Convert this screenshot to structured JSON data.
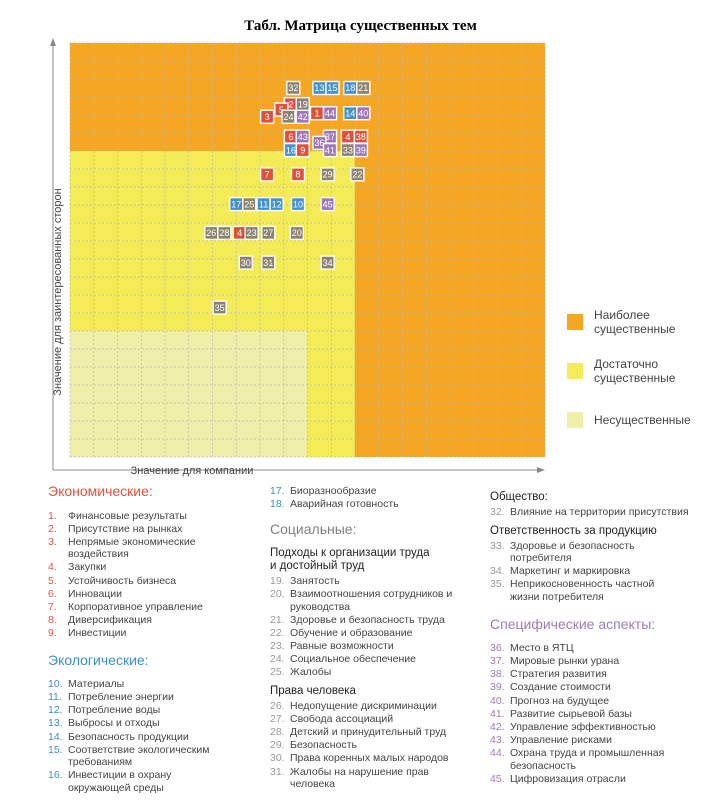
{
  "title": "Табл. Матрица существенных тем",
  "chart_data": {
    "type": "scatter",
    "title": "Табл. Матрица существенных тем",
    "xlabel": "Значение для компании",
    "ylabel": "Значение для заинтересованных сторон",
    "xlim": [
      0,
      20
    ],
    "ylim": [
      0,
      23
    ],
    "grid": true,
    "zones": [
      {
        "name": "Наиболее существенные",
        "color": "#f5a623"
      },
      {
        "name": "Достаточно существенные",
        "color": "#f3ec57"
      },
      {
        "name": "Несущественные",
        "color": "#f0efaa"
      }
    ],
    "category_colors": {
      "eco": "#d9533f",
      "env": "#4591cc",
      "soc": "#8c8273",
      "spec": "#9d77b5"
    },
    "points": [
      {
        "label": "32",
        "cat": "soc",
        "x": 9.4,
        "y": 20.5
      },
      {
        "label": "13",
        "cat": "env",
        "x": 10.5,
        "y": 20.5
      },
      {
        "label": "15",
        "cat": "env",
        "x": 11.05,
        "y": 20.5
      },
      {
        "label": "18",
        "cat": "env",
        "x": 11.8,
        "y": 20.5
      },
      {
        "label": "21",
        "cat": "soc",
        "x": 12.35,
        "y": 20.5
      },
      {
        "label": "2",
        "cat": "eco",
        "x": 9.3,
        "y": 19.6
      },
      {
        "label": "19",
        "cat": "soc",
        "x": 9.8,
        "y": 19.6
      },
      {
        "label": "5",
        "cat": "eco",
        "x": 8.9,
        "y": 19.3
      },
      {
        "label": "3",
        "cat": "eco",
        "x": 8.3,
        "y": 18.9
      },
      {
        "label": "24",
        "cat": "soc",
        "x": 9.2,
        "y": 18.9
      },
      {
        "label": "42",
        "cat": "spec",
        "x": 9.8,
        "y": 18.9
      },
      {
        "label": "1",
        "cat": "eco",
        "x": 10.4,
        "y": 19.1
      },
      {
        "label": "44",
        "cat": "spec",
        "x": 10.95,
        "y": 19.1
      },
      {
        "label": "14",
        "cat": "env",
        "x": 11.8,
        "y": 19.1
      },
      {
        "label": "40",
        "cat": "spec",
        "x": 12.35,
        "y": 19.1
      },
      {
        "label": "6",
        "cat": "eco",
        "x": 9.3,
        "y": 17.8
      },
      {
        "label": "43",
        "cat": "spec",
        "x": 9.8,
        "y": 17.8
      },
      {
        "label": "37",
        "cat": "spec",
        "x": 10.95,
        "y": 17.8
      },
      {
        "label": "4",
        "cat": "eco",
        "x": 11.7,
        "y": 17.8
      },
      {
        "label": "38",
        "cat": "eco",
        "x": 12.25,
        "y": 17.8
      },
      {
        "label": "36",
        "cat": "spec",
        "x": 10.5,
        "y": 17.45
      },
      {
        "label": "16",
        "cat": "env",
        "x": 9.3,
        "y": 17.05
      },
      {
        "label": "9",
        "cat": "eco",
        "x": 9.8,
        "y": 17.05
      },
      {
        "label": "41",
        "cat": "spec",
        "x": 10.95,
        "y": 17.05
      },
      {
        "label": "33",
        "cat": "soc",
        "x": 11.7,
        "y": 17.05
      },
      {
        "label": "39",
        "cat": "spec",
        "x": 12.25,
        "y": 17.05
      },
      {
        "label": "7",
        "cat": "eco",
        "x": 8.3,
        "y": 15.7
      },
      {
        "label": "8",
        "cat": "eco",
        "x": 9.6,
        "y": 15.7
      },
      {
        "label": "29",
        "cat": "soc",
        "x": 10.85,
        "y": 15.7
      },
      {
        "label": "22",
        "cat": "soc",
        "x": 12.1,
        "y": 15.7
      },
      {
        "label": "17",
        "cat": "env",
        "x": 7.0,
        "y": 14.05
      },
      {
        "label": "25",
        "cat": "soc",
        "x": 7.55,
        "y": 14.05
      },
      {
        "label": "11",
        "cat": "env",
        "x": 8.15,
        "y": 14.05
      },
      {
        "label": "12",
        "cat": "env",
        "x": 8.7,
        "y": 14.05
      },
      {
        "label": "10",
        "cat": "env",
        "x": 9.6,
        "y": 14.05
      },
      {
        "label": "45",
        "cat": "spec",
        "x": 10.85,
        "y": 14.05
      },
      {
        "label": "26",
        "cat": "soc",
        "x": 5.95,
        "y": 12.45
      },
      {
        "label": "28",
        "cat": "soc",
        "x": 6.5,
        "y": 12.45
      },
      {
        "label": "4",
        "cat": "eco",
        "x": 7.15,
        "y": 12.45
      },
      {
        "label": "23",
        "cat": "soc",
        "x": 7.65,
        "y": 12.45
      },
      {
        "label": "27",
        "cat": "soc",
        "x": 8.35,
        "y": 12.45
      },
      {
        "label": "20",
        "cat": "soc",
        "x": 9.55,
        "y": 12.45
      },
      {
        "label": "30",
        "cat": "soc",
        "x": 7.4,
        "y": 10.8
      },
      {
        "label": "31",
        "cat": "soc",
        "x": 8.35,
        "y": 10.8
      },
      {
        "label": "34",
        "cat": "soc",
        "x": 10.85,
        "y": 10.8
      },
      {
        "label": "35",
        "cat": "soc",
        "x": 6.3,
        "y": 8.3
      }
    ]
  },
  "legend": [
    {
      "label_lines": [
        "Наиболее",
        "существенные"
      ],
      "color": "#f5a623"
    },
    {
      "label_lines": [
        "Достаточно",
        "существенные"
      ],
      "color": "#f3ec57"
    },
    {
      "label_lines": [
        "Несущественные"
      ],
      "color": "#f0efaa"
    }
  ],
  "categories": {
    "economic": {
      "heading": "Экономические:",
      "items": [
        {
          "num": "1.",
          "lines": [
            "Финансовые результаты"
          ]
        },
        {
          "num": "2.",
          "lines": [
            "Присутствие на рынках"
          ]
        },
        {
          "num": "3.",
          "lines": [
            "Непрямые экономические",
            "воздействия"
          ]
        },
        {
          "num": "4.",
          "lines": [
            "Закупки"
          ]
        },
        {
          "num": "5.",
          "lines": [
            "Устойчивость бизнеса"
          ]
        },
        {
          "num": "6.",
          "lines": [
            "Инновации"
          ]
        },
        {
          "num": "7.",
          "lines": [
            "Корпоративное управление"
          ]
        },
        {
          "num": "8.",
          "lines": [
            "Диверсификация"
          ]
        },
        {
          "num": "9.",
          "lines": [
            "Инвестиции"
          ]
        }
      ]
    },
    "environmental": {
      "heading": "Экологические:",
      "items": [
        {
          "num": "10.",
          "lines": [
            "Материалы"
          ]
        },
        {
          "num": "11.",
          "lines": [
            "Потребление энергии"
          ]
        },
        {
          "num": "12.",
          "lines": [
            "Потребление воды"
          ]
        },
        {
          "num": "13.",
          "lines": [
            "Выбросы и отходы"
          ]
        },
        {
          "num": "14.",
          "lines": [
            "Безопасность продукции"
          ]
        },
        {
          "num": "15.",
          "lines": [
            "Соответствие экологическим",
            "требованиям"
          ]
        },
        {
          "num": "16.",
          "lines": [
            "Инвестиции в охрану",
            "окружающей среды"
          ]
        }
      ]
    },
    "environmental_cont": {
      "items": [
        {
          "num": "17.",
          "lines": [
            "Биоразнообразие"
          ]
        },
        {
          "num": "18.",
          "lines": [
            "Аварийная готовность"
          ]
        }
      ]
    },
    "social": {
      "heading": "Социальные:",
      "groups": [
        {
          "subheading_lines": [
            "Подходы к организации труда",
            "и достойный труд"
          ],
          "items": [
            {
              "num": "19.",
              "lines": [
                "Занятость"
              ]
            },
            {
              "num": "20.",
              "lines": [
                "Взаимоотношения сотрудников и",
                "руководства"
              ]
            },
            {
              "num": "21.",
              "lines": [
                "Здоровье и безопасность труда"
              ]
            },
            {
              "num": "22.",
              "lines": [
                "Обучение и образование"
              ]
            },
            {
              "num": "23.",
              "lines": [
                "Равные возможности"
              ]
            },
            {
              "num": "24.",
              "lines": [
                "Социальное обеспечение"
              ]
            },
            {
              "num": "25.",
              "lines": [
                "Жалобы"
              ]
            }
          ]
        },
        {
          "subheading_lines": [
            "Права человека"
          ],
          "items": [
            {
              "num": "26.",
              "lines": [
                "Недопущение дискриминации"
              ]
            },
            {
              "num": "27.",
              "lines": [
                "Свобода ассоциаций"
              ]
            },
            {
              "num": "28.",
              "lines": [
                "Детский и принудительный труд"
              ]
            },
            {
              "num": "29.",
              "lines": [
                "Безопасность"
              ]
            },
            {
              "num": "30.",
              "lines": [
                "Права коренных малых народов"
              ]
            },
            {
              "num": "31.",
              "lines": [
                "Жалобы на нарушение прав",
                "человека"
              ]
            }
          ]
        },
        {
          "subheading_lines": [
            "Общество:"
          ],
          "items": [
            {
              "num": "32.",
              "lines": [
                "Влияние на территории присутствия"
              ]
            }
          ]
        },
        {
          "subheading_lines": [
            "Ответственность за продукцию"
          ],
          "items": [
            {
              "num": "33.",
              "lines": [
                "Здоровье и безопасность",
                "потребителя"
              ]
            },
            {
              "num": "34.",
              "lines": [
                "Маркетинг и маркировка"
              ]
            },
            {
              "num": "35.",
              "lines": [
                "Неприкосновенность частной",
                "жизни потребителя"
              ]
            }
          ]
        }
      ]
    },
    "specific": {
      "heading": "Специфические аспекты:",
      "items": [
        {
          "num": "36.",
          "lines": [
            "Место в ЯТЦ"
          ]
        },
        {
          "num": "37.",
          "lines": [
            "Мировые рынки урана"
          ]
        },
        {
          "num": "38.",
          "lines": [
            "Стратегия развития"
          ]
        },
        {
          "num": "39.",
          "lines": [
            "Создание стоимости"
          ]
        },
        {
          "num": "40.",
          "lines": [
            "Прогноз на будущее"
          ]
        },
        {
          "num": "41.",
          "lines": [
            "Развитие сырьевой базы"
          ]
        },
        {
          "num": "42.",
          "lines": [
            "Управление эффективностью"
          ]
        },
        {
          "num": "43.",
          "lines": [
            "Управление рисками"
          ]
        },
        {
          "num": "44.",
          "lines": [
            "Охрана труда и промышленная",
            "безопасность"
          ]
        },
        {
          "num": "45.",
          "lines": [
            "Цифровизация отрасли"
          ]
        }
      ]
    }
  }
}
